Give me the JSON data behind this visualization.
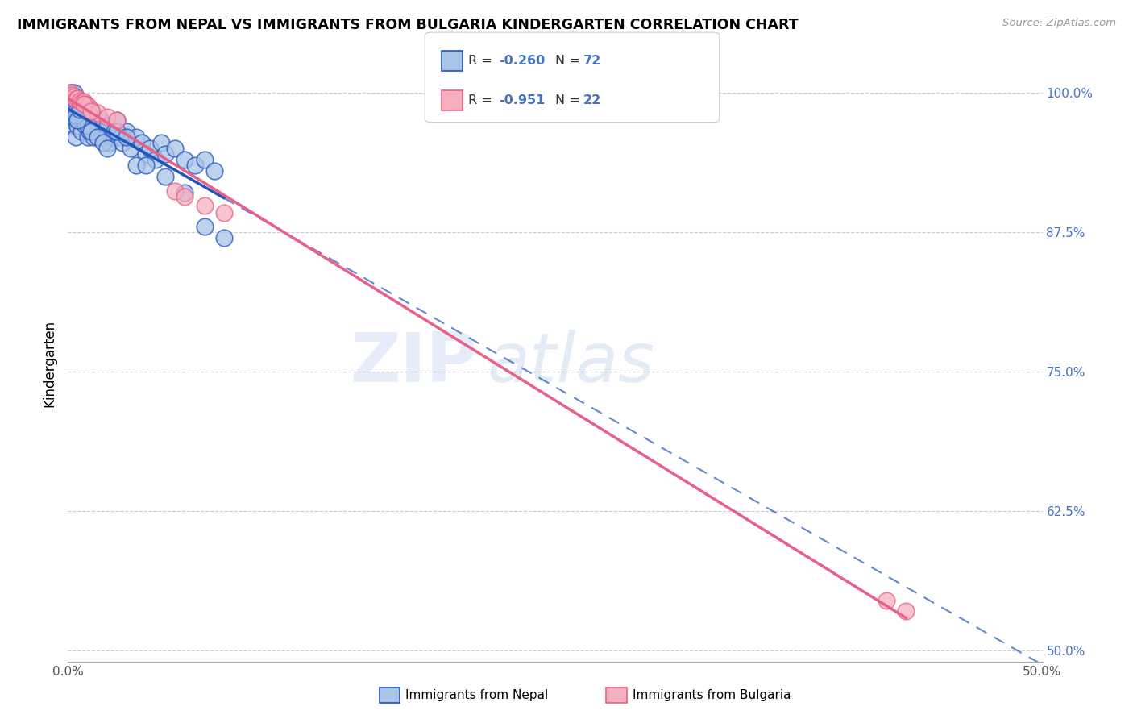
{
  "title": "IMMIGRANTS FROM NEPAL VS IMMIGRANTS FROM BULGARIA KINDERGARTEN CORRELATION CHART",
  "source": "Source: ZipAtlas.com",
  "ylabel": "Kindergarten",
  "legend_label1": "Immigrants from Nepal",
  "legend_label2": "Immigrants from Bulgaria",
  "R1": -0.26,
  "N1": 72,
  "R2": -0.951,
  "N2": 22,
  "color_nepal": "#aac4e8",
  "color_bulgaria": "#f5b0c0",
  "trendline_nepal": "#2255bb",
  "trendline_bulgaria": "#e8608a",
  "xlim": [
    0.0,
    0.5
  ],
  "ylim": [
    0.49,
    1.025
  ],
  "yticks": [
    0.5,
    0.625,
    0.75,
    0.875,
    1.0
  ],
  "ytick_labels": [
    "50.0%",
    "62.5%",
    "75.0%",
    "87.5%",
    "100.0%"
  ],
  "xticks": [
    0.0,
    0.1,
    0.2,
    0.3,
    0.4,
    0.5
  ],
  "xtick_labels": [
    "0.0%",
    "",
    "",
    "",
    "",
    "50.0%"
  ],
  "watermark_zi": "ZIP",
  "watermark_atlas": "atlas",
  "nepal_x": [
    0.001,
    0.001,
    0.002,
    0.002,
    0.002,
    0.003,
    0.003,
    0.003,
    0.004,
    0.004,
    0.004,
    0.005,
    0.005,
    0.005,
    0.006,
    0.006,
    0.007,
    0.007,
    0.008,
    0.008,
    0.009,
    0.009,
    0.01,
    0.01,
    0.011,
    0.012,
    0.013,
    0.014,
    0.015,
    0.016,
    0.017,
    0.018,
    0.019,
    0.02,
    0.021,
    0.022,
    0.024,
    0.025,
    0.027,
    0.028,
    0.03,
    0.032,
    0.035,
    0.038,
    0.04,
    0.042,
    0.045,
    0.048,
    0.05,
    0.055,
    0.06,
    0.065,
    0.07,
    0.075,
    0.008,
    0.01,
    0.012,
    0.015,
    0.018,
    0.02,
    0.003,
    0.004,
    0.005,
    0.006,
    0.025,
    0.03,
    0.035,
    0.04,
    0.05,
    0.06,
    0.07,
    0.08
  ],
  "nepal_y": [
    1.0,
    0.98,
    0.99,
    0.975,
    1.0,
    0.985,
    0.97,
    1.0,
    0.99,
    0.975,
    0.96,
    0.985,
    0.97,
    0.995,
    0.975,
    0.99,
    0.985,
    0.965,
    0.99,
    0.975,
    0.97,
    0.985,
    0.975,
    0.96,
    0.965,
    0.97,
    0.96,
    0.975,
    0.965,
    0.97,
    0.975,
    0.96,
    0.965,
    0.97,
    0.955,
    0.96,
    0.965,
    0.975,
    0.96,
    0.955,
    0.965,
    0.95,
    0.96,
    0.955,
    0.945,
    0.95,
    0.94,
    0.955,
    0.945,
    0.95,
    0.94,
    0.935,
    0.94,
    0.93,
    0.98,
    0.97,
    0.965,
    0.96,
    0.955,
    0.95,
    0.995,
    0.98,
    0.975,
    0.985,
    0.965,
    0.96,
    0.935,
    0.935,
    0.925,
    0.91,
    0.88,
    0.87
  ],
  "bulgaria_x": [
    0.001,
    0.002,
    0.003,
    0.004,
    0.005,
    0.006,
    0.007,
    0.008,
    0.009,
    0.01,
    0.012,
    0.015,
    0.02,
    0.025,
    0.008,
    0.012,
    0.055,
    0.06,
    0.07,
    0.08,
    0.42,
    0.43
  ],
  "bulgaria_y": [
    1.0,
    0.998,
    0.996,
    0.994,
    0.995,
    0.993,
    0.991,
    0.992,
    0.99,
    0.988,
    0.985,
    0.982,
    0.978,
    0.975,
    0.99,
    0.983,
    0.912,
    0.907,
    0.899,
    0.892,
    0.545,
    0.535
  ],
  "nepal_trend_x": [
    0.0,
    0.075
  ],
  "nepal_trend_solid_end": 0.075,
  "nepal_trend_dash_end": 0.5,
  "nepal_trend_intercept": 0.975,
  "nepal_trend_slope": -0.52,
  "bulgaria_trend_intercept": 1.002,
  "bulgaria_trend_slope": -1.12
}
